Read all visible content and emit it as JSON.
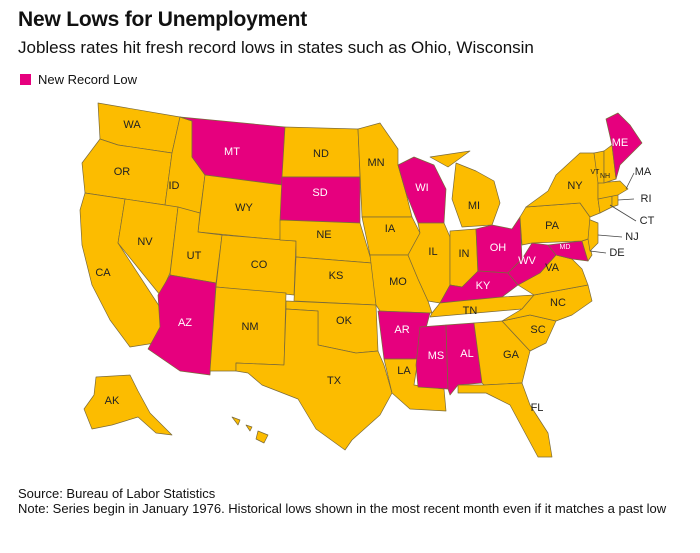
{
  "title": "New Lows for Unemployment",
  "subtitle": "Jobless rates hit fresh record lows in states such as Ohio, Wisconsin",
  "legend": {
    "label": "New Record Low",
    "color": "#e6007e"
  },
  "colors": {
    "record_low": "#e6007e",
    "other": "#fcbc00",
    "border": "#7a6a3a"
  },
  "states": {
    "WA": "WA",
    "OR": "OR",
    "CA": "CA",
    "ID": "ID",
    "NV": "NV",
    "MT": "MT",
    "WY": "WY",
    "UT": "UT",
    "AZ": "AZ",
    "CO": "CO",
    "NM": "NM",
    "ND": "ND",
    "SD": "SD",
    "NE": "NE",
    "KS": "KS",
    "OK": "OK",
    "TX": "TX",
    "MN": "MN",
    "IA": "IA",
    "MO": "MO",
    "AR": "AR",
    "LA": "LA",
    "WI": "WI",
    "IL": "IL",
    "MI": "MI",
    "IN": "IN",
    "OH": "OH",
    "KY": "KY",
    "TN": "TN",
    "MS": "MS",
    "AL": "AL",
    "GA": "GA",
    "FL": "FL",
    "SC": "SC",
    "NC": "NC",
    "VA": "VA",
    "WV": "WV",
    "MD": "MD",
    "DE": "DE",
    "NJ": "NJ",
    "PA": "PA",
    "NY": "NY",
    "CT": "CT",
    "RI": "RI",
    "MA": "MA",
    "VT": "VT",
    "NH": "NH",
    "ME": "ME",
    "AK": "AK",
    "HI": "HI"
  },
  "record_low_states": [
    "MT",
    "SD",
    "WI",
    "AZ",
    "AR",
    "MS",
    "AL",
    "OH",
    "KY",
    "WV",
    "MD",
    "ME"
  ],
  "source": "Source: Bureau of Labor Statistics",
  "note": "Note: Series begin in January 1976. Historical lows shown in the most recent month even if it matches a past low"
}
